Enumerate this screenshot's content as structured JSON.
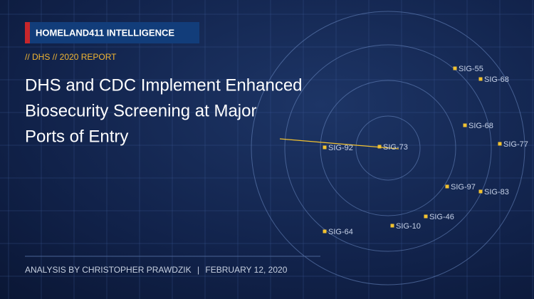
{
  "badge": "HOMELAND411 INTELLIGENCE",
  "kicker": "// DHS // 2020 REPORT",
  "title_lines": [
    "DHS and CDC Implement Enhanced",
    "Biosecurity Screening at Major",
    "Ports of Entry"
  ],
  "signals": [
    "SIG-55",
    "SIG-68",
    "SIG-68",
    "SIG-77",
    "SIG-92",
    "SIG-73",
    "SIG-97",
    "SIG-83",
    "SIG-46",
    "SIG-10",
    "SIG-64"
  ],
  "byline": {
    "author": "ANALYSIS BY CHRISTOPHER PRAWDZIK",
    "separator": "|",
    "date": "FEBRUARY 12, 2020"
  }
}
